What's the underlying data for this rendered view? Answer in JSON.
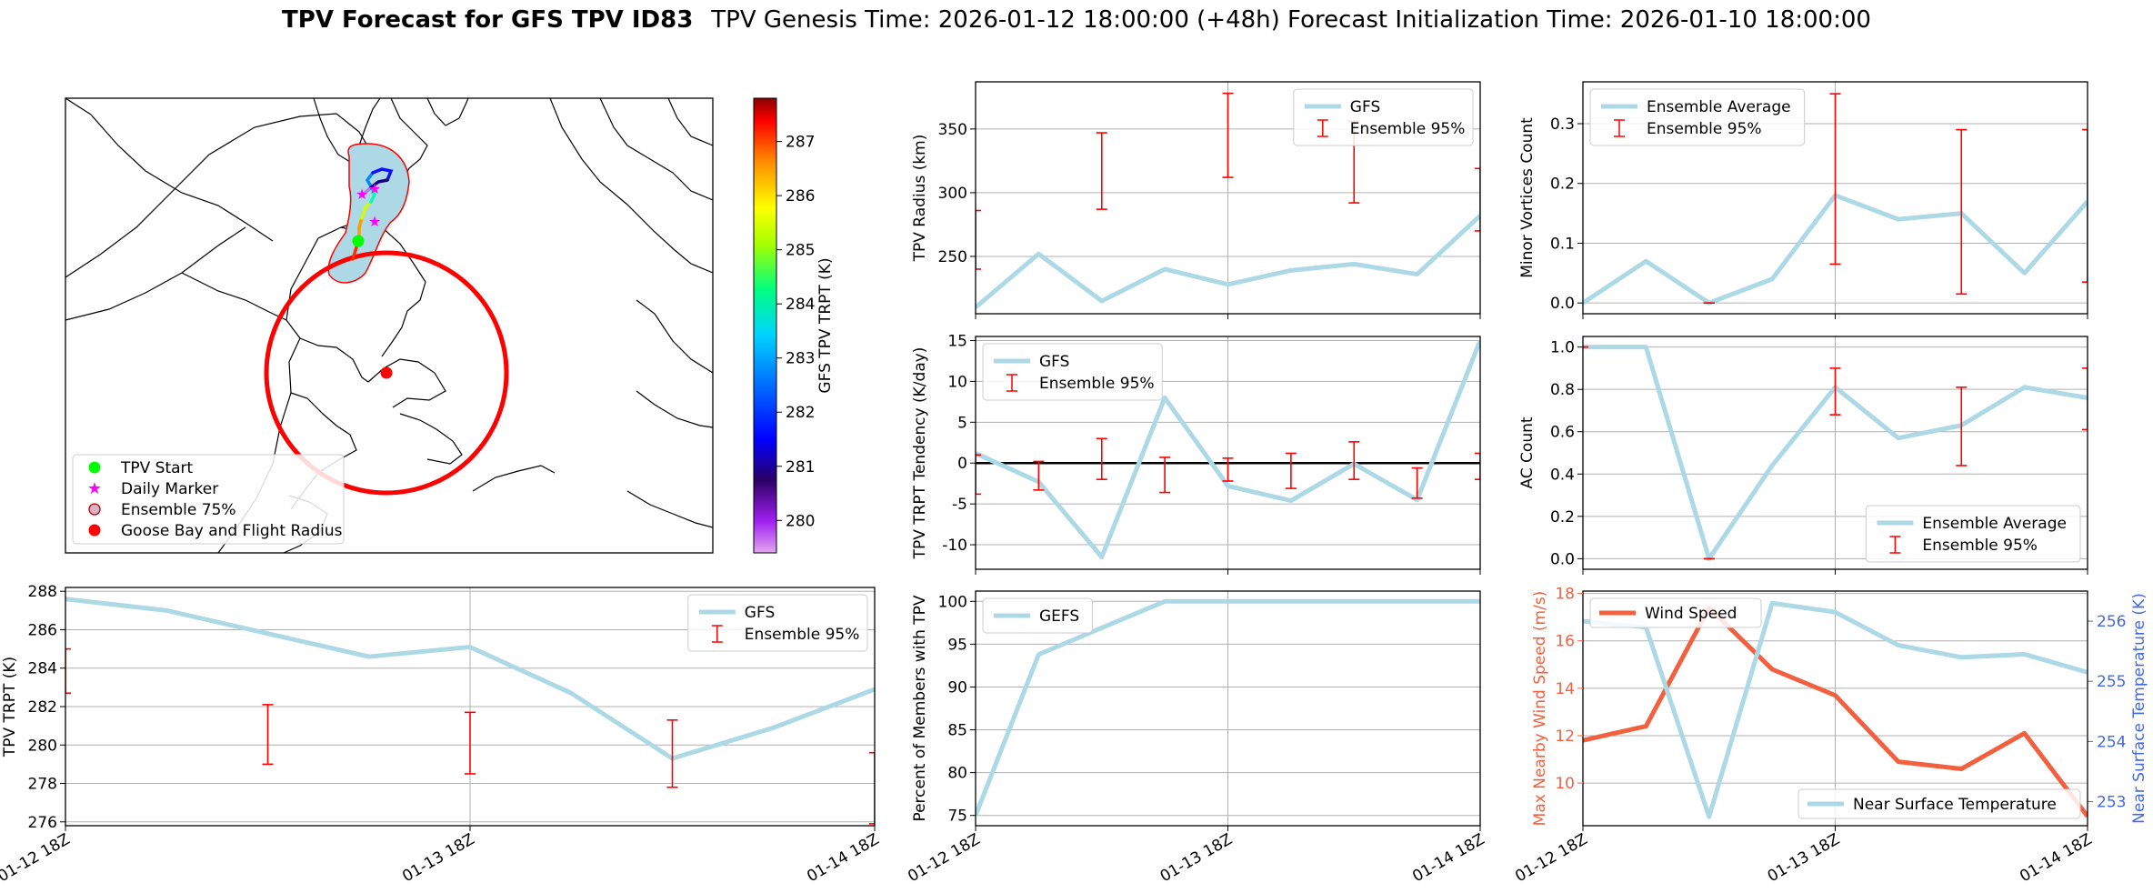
{
  "figure": {
    "title_bold": "TPV Forecast for GFS TPV ID83",
    "title_rest": "TPV Genesis Time: 2026-01-12 18:00:00 (+48h)   Forecast Initialization Time: 2026-01-10 18:00:00",
    "x_tick_labels": [
      "01-12 18Z",
      "01-13 18Z",
      "01-14 18Z"
    ]
  },
  "colors": {
    "gfs_line": "#add8e6",
    "ensemble_bar": "#ff0000",
    "wind": "#f2603f",
    "temp_axis": "#4169e1",
    "flight_radius": "#ff0000",
    "ensemble_fill": "#add8e6",
    "tpv_start": "#00ff00",
    "daily_marker": "#ff00ff"
  },
  "map": {
    "legend": [
      {
        "label": "TPV Start",
        "marker": "green-dot"
      },
      {
        "label": "Daily Marker",
        "marker": "magenta-star"
      },
      {
        "label": "Ensemble 75%",
        "marker": "lightblue-dot"
      },
      {
        "label": "Goose Bay and Flight Radius",
        "marker": "red-dot"
      }
    ],
    "colorbar": {
      "label": "GFS TPV TRPT (K)",
      "ticks": [
        "280",
        "281",
        "282",
        "283",
        "284",
        "285",
        "286",
        "287"
      ],
      "range": [
        279.4,
        287.8
      ]
    }
  },
  "chart_data": [
    {
      "id": "trpt",
      "type": "line",
      "title": "",
      "xlabel": "",
      "ylabel": "TPV TRPT (K)",
      "x": [
        0,
        6,
        12,
        18,
        24,
        30,
        36,
        42,
        48
      ],
      "xlim": [
        0,
        48
      ],
      "ylim": [
        275.8,
        288.2
      ],
      "yticks": [
        276,
        278,
        280,
        282,
        284,
        286,
        288
      ],
      "series": [
        {
          "name": "GFS",
          "values": [
            287.6,
            287.0,
            285.8,
            284.6,
            285.1,
            282.7,
            279.3,
            280.9,
            282.9
          ]
        }
      ],
      "errorbars": {
        "name": "Ensemble 95%",
        "x": [
          0,
          12,
          24,
          36,
          48
        ],
        "low": [
          282.7,
          279.0,
          278.5,
          277.8,
          275.9
        ],
        "high": [
          285.0,
          282.1,
          281.7,
          281.3,
          279.6
        ]
      },
      "legend": [
        "GFS",
        "Ensemble 95%"
      ],
      "legend_position": "top-right",
      "show_xticklabels": true
    },
    {
      "id": "radius",
      "type": "line",
      "ylabel": "TPV Radius (km)",
      "x": [
        0,
        6,
        12,
        18,
        24,
        30,
        36,
        42,
        48
      ],
      "xlim": [
        0,
        48
      ],
      "ylim": [
        205,
        387
      ],
      "yticks": [
        250,
        300,
        350
      ],
      "series": [
        {
          "name": "GFS",
          "values": [
            210,
            252,
            215,
            240,
            228,
            239,
            244,
            236,
            282
          ]
        }
      ],
      "errorbars": {
        "name": "Ensemble 95%",
        "x": [
          0,
          12,
          24,
          36,
          48
        ],
        "low": [
          240,
          287,
          312,
          292,
          270
        ],
        "high": [
          286,
          347,
          378,
          356,
          319
        ]
      },
      "legend": [
        "GFS",
        "Ensemble 95%"
      ],
      "legend_position": "top-right",
      "show_xticklabels": false
    },
    {
      "id": "tendency",
      "type": "line",
      "ylabel": "TPV TRPT Tendency (K/day)",
      "x": [
        0,
        6,
        12,
        18,
        24,
        30,
        36,
        42,
        48
      ],
      "xlim": [
        0,
        48
      ],
      "ylim": [
        -13,
        15.5
      ],
      "yticks": [
        -10,
        -5,
        0,
        5,
        10,
        15
      ],
      "zero_line": true,
      "series": [
        {
          "name": "GFS",
          "values": [
            1.2,
            -2.3,
            -11.5,
            8.0,
            -2.8,
            -4.6,
            -0.1,
            -4.5,
            15.0
          ]
        }
      ],
      "errorbars": {
        "name": "Ensemble 95%",
        "x": [
          0,
          6,
          12,
          18,
          24,
          30,
          36,
          42,
          48
        ],
        "low": [
          -3.8,
          -3.3,
          -2.0,
          -3.6,
          -2.2,
          -3.1,
          -2.0,
          -4.3,
          -2.0
        ],
        "high": [
          1.0,
          0.2,
          3.0,
          0.7,
          0.6,
          1.2,
          2.6,
          -0.6,
          1.2
        ]
      },
      "legend": [
        "GFS",
        "Ensemble 95%"
      ],
      "legend_position": "top-left",
      "show_xticklabels": false
    },
    {
      "id": "members",
      "type": "line",
      "ylabel": "Percent of Members with TPV",
      "x": [
        0,
        6,
        12,
        18,
        24,
        30,
        36,
        42,
        48
      ],
      "xlim": [
        0,
        48
      ],
      "ylim": [
        73.8,
        101.2
      ],
      "yticks": [
        75,
        80,
        85,
        90,
        95,
        100
      ],
      "series": [
        {
          "name": "GEFS",
          "values": [
            75,
            93.8,
            96.9,
            100,
            100,
            100,
            100,
            100,
            100
          ]
        }
      ],
      "legend": [
        "GEFS"
      ],
      "legend_position": "top-left",
      "show_xticklabels": true
    },
    {
      "id": "minor",
      "type": "line",
      "ylabel": "Minor Vortices Count",
      "x": [
        0,
        6,
        12,
        18,
        24,
        30,
        36,
        42,
        48
      ],
      "xlim": [
        0,
        48
      ],
      "ylim": [
        -0.018,
        0.37
      ],
      "yticks": [
        0.0,
        0.1,
        0.2,
        0.3
      ],
      "series": [
        {
          "name": "Ensemble Average",
          "values": [
            0.0,
            0.07,
            0.0,
            0.04,
            0.18,
            0.14,
            0.15,
            0.05,
            0.17
          ]
        }
      ],
      "errorbars": {
        "name": "Ensemble 95%",
        "x": [
          12,
          24,
          36,
          48
        ],
        "low": [
          0.0,
          0.065,
          0.015,
          0.035
        ],
        "high": [
          0.0,
          0.35,
          0.29,
          0.29
        ]
      },
      "legend": [
        "Ensemble Average",
        "Ensemble 95%"
      ],
      "legend_position": "top-left",
      "show_xticklabels": false
    },
    {
      "id": "ac",
      "type": "line",
      "ylabel": "AC Count",
      "x": [
        0,
        6,
        12,
        18,
        24,
        30,
        36,
        42,
        48
      ],
      "xlim": [
        0,
        48
      ],
      "ylim": [
        -0.05,
        1.05
      ],
      "yticks": [
        0.0,
        0.2,
        0.4,
        0.6,
        0.8,
        1.0
      ],
      "series": [
        {
          "name": "Ensemble Average",
          "values": [
            1.0,
            1.0,
            0.0,
            0.44,
            0.81,
            0.57,
            0.63,
            0.81,
            0.76
          ]
        }
      ],
      "errorbars": {
        "name": "Ensemble 95%",
        "x": [
          0,
          12,
          24,
          36,
          48
        ],
        "low": [
          1.0,
          0.0,
          0.68,
          0.44,
          0.61
        ],
        "high": [
          1.0,
          0.0,
          0.9,
          0.81,
          0.9
        ]
      },
      "legend": [
        "Ensemble Average",
        "Ensemble 95%"
      ],
      "legend_position": "bottom-right",
      "show_xticklabels": false
    },
    {
      "id": "wind",
      "type": "line",
      "ylabel": "Max Nearby Wind Speed (m/s)",
      "y2label": "Near Surface Temperature (K)",
      "x": [
        0,
        6,
        12,
        18,
        24,
        30,
        36,
        42,
        48
      ],
      "xlim": [
        0,
        48
      ],
      "ylim": [
        8.2,
        18.1
      ],
      "yticks": [
        10,
        12,
        14,
        16,
        18
      ],
      "y2lim": [
        252.6,
        256.5
      ],
      "y2ticks": [
        253,
        254,
        255,
        256
      ],
      "series": [
        {
          "name": "Wind Speed",
          "axis": "left",
          "values": [
            11.8,
            12.4,
            17.4,
            14.8,
            13.7,
            10.9,
            10.6,
            12.1,
            8.6
          ]
        },
        {
          "name": "Near Surface Temperature",
          "axis": "right",
          "values": [
            256.0,
            255.9,
            252.75,
            256.3,
            256.15,
            255.6,
            255.4,
            255.45,
            255.15
          ]
        }
      ],
      "legend": [
        "Wind Speed",
        "Near Surface Temperature"
      ],
      "show_xticklabels": true
    }
  ]
}
